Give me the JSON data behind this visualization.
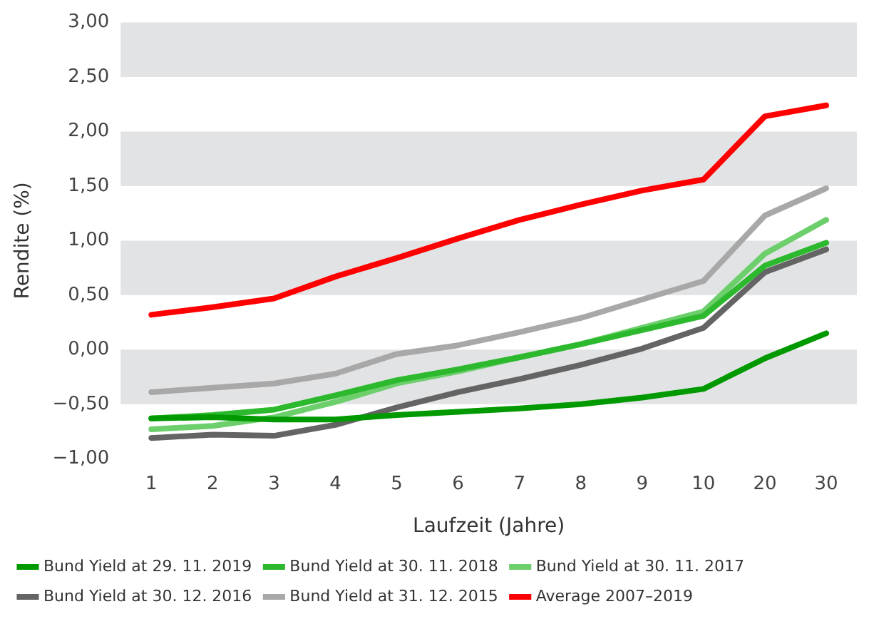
{
  "chart_data": {
    "type": "line",
    "xlabel": "Laufzeit (Jahre)",
    "ylabel": "Rendite (%)",
    "categories": [
      "1",
      "2",
      "3",
      "4",
      "5",
      "6",
      "7",
      "8",
      "9",
      "10",
      "20",
      "30"
    ],
    "series": [
      {
        "name": "Bund Yield at 29. 11. 2019",
        "color": "#009a00",
        "values": [
          -0.63,
          -0.62,
          -0.64,
          -0.64,
          -0.6,
          -0.57,
          -0.54,
          -0.5,
          -0.44,
          -0.36,
          -0.08,
          0.15
        ]
      },
      {
        "name": "Bund Yield at 30. 11. 2018",
        "color": "#2db92d",
        "values": [
          -0.63,
          -0.6,
          -0.55,
          -0.42,
          -0.28,
          -0.18,
          -0.07,
          0.05,
          0.18,
          0.31,
          0.77,
          0.98
        ]
      },
      {
        "name": "Bund Yield at 30. 11. 2017",
        "color": "#6ccf6c",
        "values": [
          -0.73,
          -0.7,
          -0.62,
          -0.48,
          -0.31,
          -0.2,
          -0.07,
          0.05,
          0.2,
          0.35,
          0.88,
          1.19
        ]
      },
      {
        "name": "Bund Yield at 30. 12. 2016",
        "color": "#646464",
        "values": [
          -0.81,
          -0.78,
          -0.79,
          -0.69,
          -0.53,
          -0.39,
          -0.27,
          -0.14,
          0.01,
          0.2,
          0.71,
          0.92
        ]
      },
      {
        "name": "Bund Yield at 31. 12. 2015",
        "color": "#a8a8a8",
        "values": [
          -0.39,
          -0.35,
          -0.31,
          -0.22,
          -0.04,
          0.04,
          0.16,
          0.29,
          0.46,
          0.63,
          1.23,
          1.48
        ]
      },
      {
        "name": "Average 2007–2019",
        "color": "#ff0000",
        "values": [
          0.32,
          0.39,
          0.47,
          0.67,
          0.84,
          1.02,
          1.19,
          1.33,
          1.46,
          1.56,
          2.14,
          2.24
        ]
      }
    ],
    "ylim": [
      -1,
      3
    ],
    "yticks": [
      {
        "value": -1,
        "label": "−1,00"
      },
      {
        "value": -0.5,
        "label": "−0,50"
      },
      {
        "value": 0,
        "label": "0,00"
      },
      {
        "value": 0.5,
        "label": "0,50"
      },
      {
        "value": 1,
        "label": "1,00"
      },
      {
        "value": 1.5,
        "label": "1,50"
      },
      {
        "value": 2,
        "label": "2,00"
      },
      {
        "value": 2.5,
        "label": "2,50"
      },
      {
        "value": 3,
        "label": "3,00"
      }
    ],
    "bands": [
      {
        "axis": "y",
        "from": -0.5,
        "to": 0,
        "color": "#e2e3e5"
      },
      {
        "axis": "y",
        "from": 0.5,
        "to": 1,
        "color": "#e2e3e5"
      },
      {
        "axis": "y",
        "from": 1.5,
        "to": 2,
        "color": "#e2e3e5"
      },
      {
        "axis": "y",
        "from": 2.5,
        "to": 3,
        "color": "#e2e3e5"
      }
    ],
    "grid": false,
    "legend": "bottom",
    "marker": "none",
    "line_style": "solid"
  }
}
